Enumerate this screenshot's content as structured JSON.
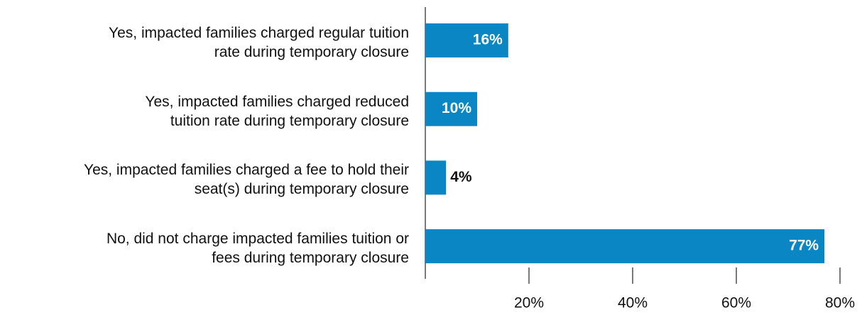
{
  "chart_data": {
    "type": "bar",
    "orientation": "horizontal",
    "categories": [
      "Yes, impacted families charged regular tuition\nrate during temporary closure",
      "Yes, impacted families charged reduced\ntuition rate during temporary closure",
      "Yes, impacted families charged a fee to hold their\nseat(s) during temporary closure",
      "No, did not charge impacted families tuition or\nfees during temporary closure"
    ],
    "values": [
      16,
      10,
      4,
      77
    ],
    "value_labels": [
      "16%",
      "10%",
      "4%",
      "77%"
    ],
    "color": "#0a86c4",
    "xlim": [
      0,
      80
    ],
    "xticks": [
      {
        "value": 20,
        "label": "20%"
      },
      {
        "value": 40,
        "label": "40%"
      },
      {
        "value": 60,
        "label": "60%"
      },
      {
        "value": 80,
        "label": "80%"
      }
    ]
  }
}
